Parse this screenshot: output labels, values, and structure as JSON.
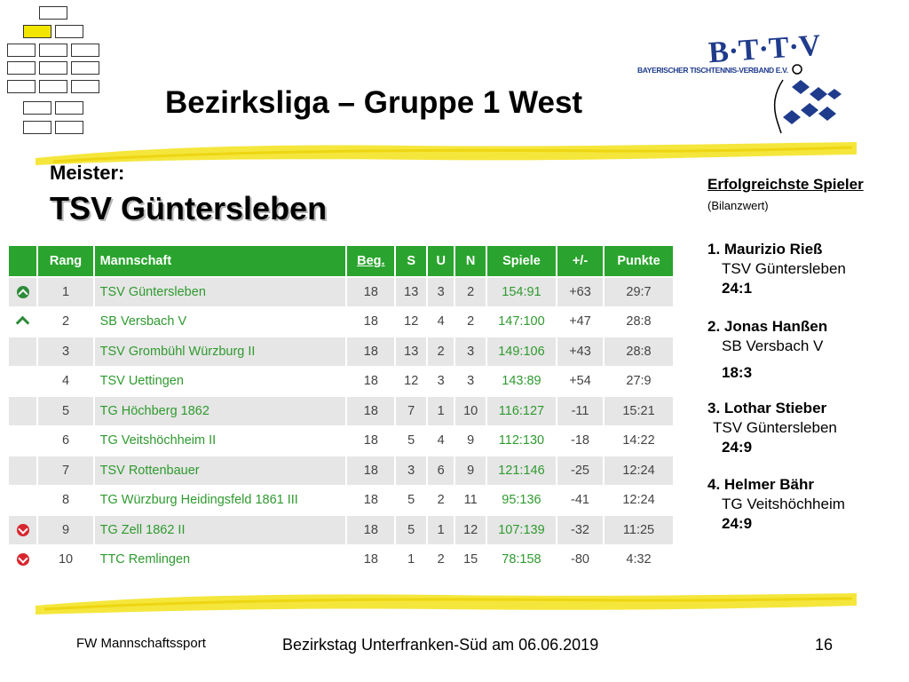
{
  "slide": {
    "title": "Bezirksliga – Gruppe 1 West",
    "meister_label": "Meister:",
    "meister_team": "TSV Güntersleben"
  },
  "logo": {
    "letters": "B·T·T·V",
    "caption": "BAYERISCHER TISCHTENNIS-VERBAND E.V."
  },
  "table": {
    "headers": [
      "Rang",
      "Mannschaft",
      "Beg.",
      "S",
      "U",
      "N",
      "Spiele",
      "+/-",
      "Punkte"
    ],
    "rows": [
      {
        "icon": "up-circle",
        "rang": "1",
        "team": "TSV Güntersleben",
        "beg": "18",
        "s": "13",
        "u": "3",
        "n": "2",
        "spiele": "154:91",
        "diff": "+63",
        "punkte": "29:7"
      },
      {
        "icon": "up-chevron",
        "rang": "2",
        "team": "SB Versbach V",
        "beg": "18",
        "s": "12",
        "u": "4",
        "n": "2",
        "spiele": "147:100",
        "diff": "+47",
        "punkte": "28:8"
      },
      {
        "icon": "none",
        "rang": "3",
        "team": "TSV Grombühl Würzburg II",
        "beg": "18",
        "s": "13",
        "u": "2",
        "n": "3",
        "spiele": "149:106",
        "diff": "+43",
        "punkte": "28:8"
      },
      {
        "icon": "none",
        "rang": "4",
        "team": "TSV Uettingen",
        "beg": "18",
        "s": "12",
        "u": "3",
        "n": "3",
        "spiele": "143:89",
        "diff": "+54",
        "punkte": "27:9"
      },
      {
        "icon": "none",
        "rang": "5",
        "team": "TG Höchberg 1862",
        "beg": "18",
        "s": "7",
        "u": "1",
        "n": "10",
        "spiele": "116:127",
        "diff": "-11",
        "punkte": "15:21"
      },
      {
        "icon": "none",
        "rang": "6",
        "team": "TG Veitshöchheim II",
        "beg": "18",
        "s": "5",
        "u": "4",
        "n": "9",
        "spiele": "112:130",
        "diff": "-18",
        "punkte": "14:22"
      },
      {
        "icon": "none",
        "rang": "7",
        "team": "TSV Rottenbauer",
        "beg": "18",
        "s": "3",
        "u": "6",
        "n": "9",
        "spiele": "121:146",
        "diff": "-25",
        "punkte": "12:24"
      },
      {
        "icon": "none",
        "rang": "8",
        "team": "TG Würzburg Heidingsfeld 1861 III",
        "beg": "18",
        "s": "5",
        "u": "2",
        "n": "11",
        "spiele": "95:136",
        "diff": "-41",
        "punkte": "12:24"
      },
      {
        "icon": "down-circle",
        "rang": "9",
        "team": "TG Zell 1862 II",
        "beg": "18",
        "s": "5",
        "u": "1",
        "n": "12",
        "spiele": "107:139",
        "diff": "-32",
        "punkte": "11:25"
      },
      {
        "icon": "down-circle",
        "rang": "10",
        "team": "TTC Remlingen",
        "beg": "18",
        "s": "1",
        "u": "2",
        "n": "15",
        "spiele": "78:158",
        "diff": "-80",
        "punkte": "4:32"
      }
    ]
  },
  "players": {
    "heading": "Erfolgreichste Spieler",
    "subheading": "(Bilanzwert)",
    "list": [
      {
        "name": "1. Maurizio Rieß",
        "club": "TSV Güntersleben",
        "score": "24:1"
      },
      {
        "name": "2. Jonas Hanßen",
        "club": "SB Versbach V",
        "score": "18:3"
      },
      {
        "name": "3. Lothar Stieber",
        "club": "TSV Güntersleben",
        "score": "24:9"
      },
      {
        "name": "4. Helmer Bähr",
        "club": "TG Veitshöchheim",
        "score": "24:9"
      }
    ]
  },
  "footer": {
    "left": "FW Mannschaftssport",
    "center": "Bezirkstag Unterfranken-Süd am 06.06.2019",
    "page": "16"
  },
  "colors": {
    "header_green": "#2aa42e",
    "team_green": "#2f9a2f",
    "highlight_yellow": "#f2e600",
    "stroke_yellow": "#f3e21a",
    "logo_blue": "#1f3b8c"
  }
}
